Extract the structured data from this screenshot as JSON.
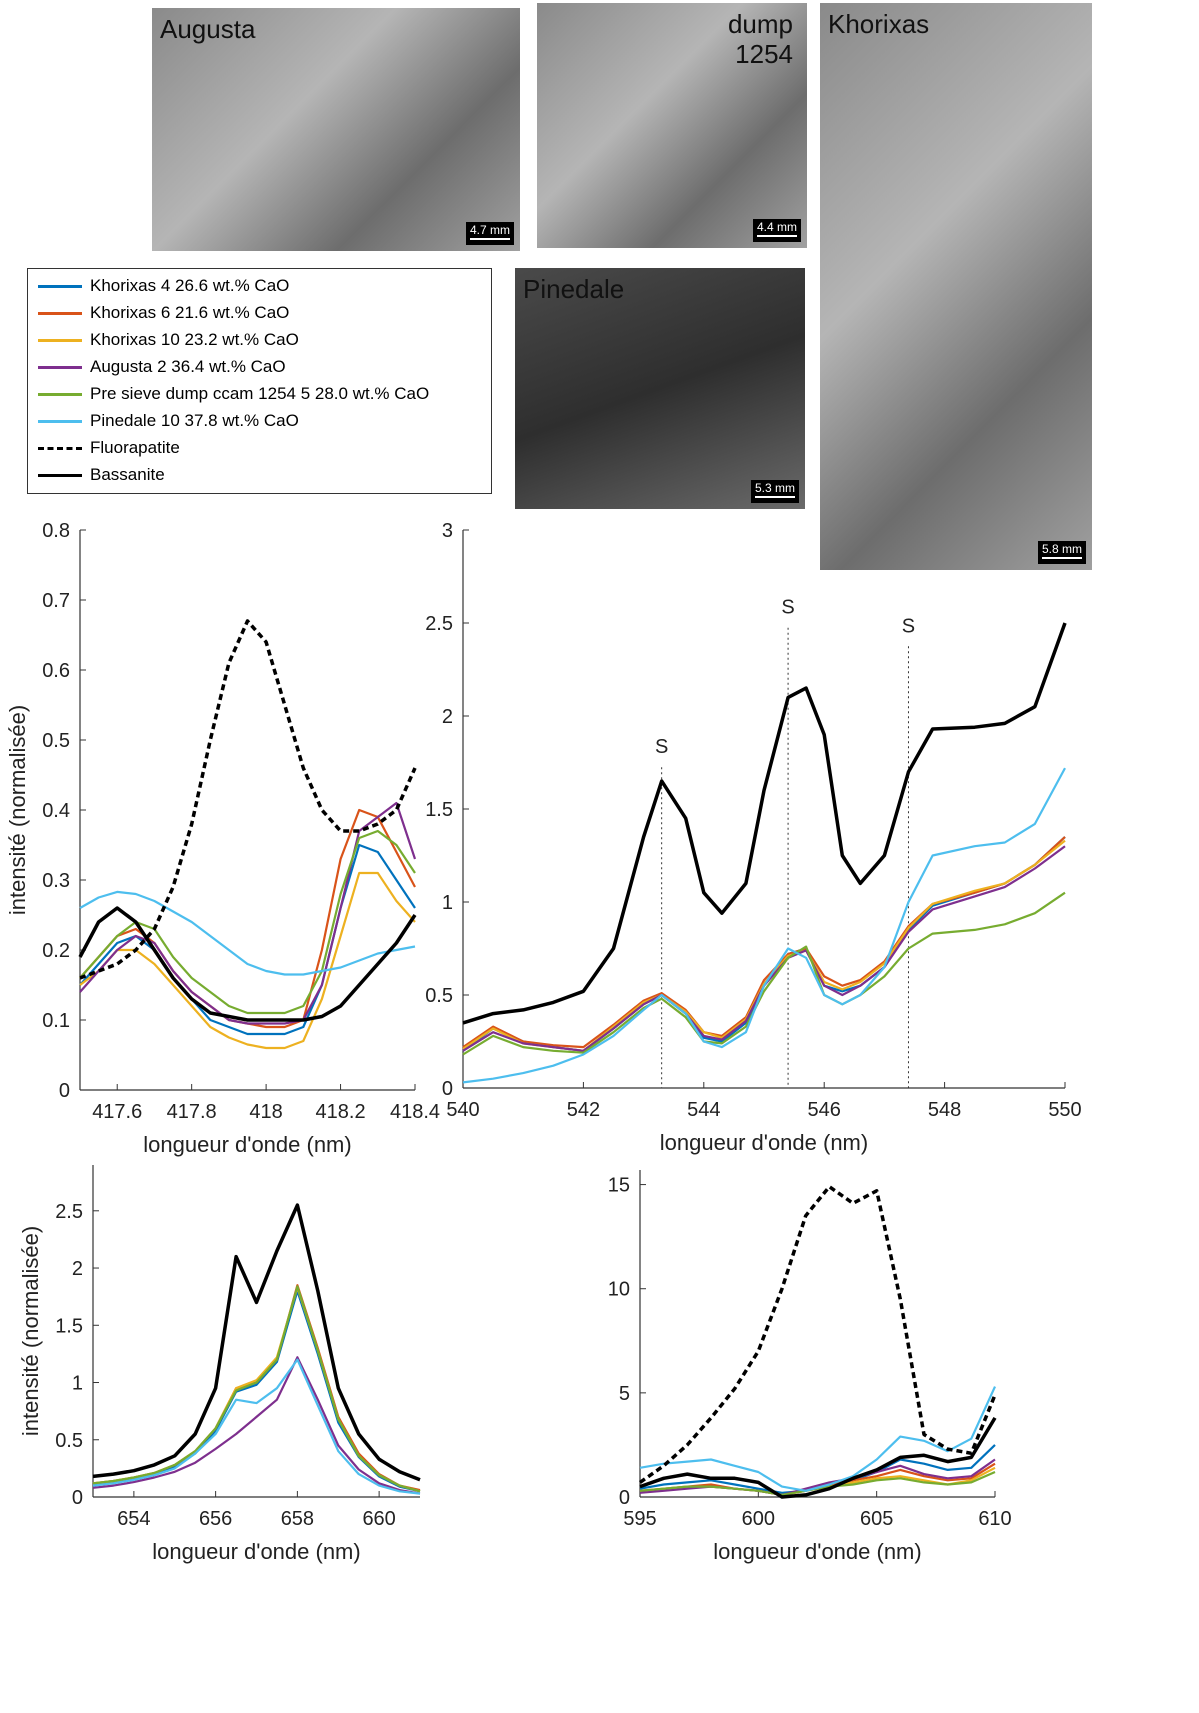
{
  "images": [
    {
      "label": "Augusta",
      "scale": "4.7 mm"
    },
    {
      "label": "dump 1254",
      "scale": "4.4 mm"
    },
    {
      "label": "Khorixas",
      "scale": "5.8 mm"
    },
    {
      "label": "Pinedale",
      "scale": "5.3 mm"
    }
  ],
  "legend": [
    {
      "name": "Khorixas 4 26.6 wt.% CaO",
      "color": "#0072bd",
      "dashed": false
    },
    {
      "name": "Khorixas 6 21.6 wt.% CaO",
      "color": "#d95319",
      "dashed": false
    },
    {
      "name": "Khorixas 10 23.2 wt.% CaO",
      "color": "#edb120",
      "dashed": false
    },
    {
      "name": "Augusta 2 36.4 wt.% CaO",
      "color": "#7e2f8e",
      "dashed": false
    },
    {
      "name": "Pre sieve dump ccam 1254 5 28.0 wt.% CaO",
      "color": "#77ac30",
      "dashed": false
    },
    {
      "name": "Pinedale 10 37.8 wt.% CaO",
      "color": "#4dbeee",
      "dashed": false
    },
    {
      "name": "Fluorapatite",
      "color": "#000000",
      "dashed": true
    },
    {
      "name": "Bassanite",
      "color": "#000000",
      "dashed": false
    }
  ],
  "chart_data": [
    {
      "type": "line",
      "x_label": "longueur d'onde (nm)",
      "y_label": "intensité (normalisée)",
      "xlim": [
        417.5,
        418.4
      ],
      "xticks": [
        417.6,
        417.8,
        418,
        418.2,
        418.4
      ],
      "ylim": [
        0,
        0.8
      ],
      "yticks": [
        0,
        0.1,
        0.2,
        0.3,
        0.4,
        0.5,
        0.6,
        0.7,
        0.8
      ],
      "x": [
        417.5,
        417.55,
        417.6,
        417.65,
        417.7,
        417.75,
        417.8,
        417.85,
        417.9,
        417.95,
        418,
        418.05,
        418.1,
        418.15,
        418.2,
        418.25,
        418.3,
        418.35,
        418.4
      ],
      "series": [
        {
          "values": [
            0.15,
            0.18,
            0.21,
            0.22,
            0.2,
            0.16,
            0.13,
            0.1,
            0.09,
            0.08,
            0.08,
            0.08,
            0.09,
            0.15,
            0.26,
            0.35,
            0.34,
            0.3,
            0.26
          ]
        },
        {
          "values": [
            0.16,
            0.19,
            0.22,
            0.23,
            0.21,
            0.17,
            0.14,
            0.12,
            0.1,
            0.095,
            0.09,
            0.09,
            0.1,
            0.2,
            0.33,
            0.4,
            0.39,
            0.34,
            0.29
          ]
        },
        {
          "values": [
            0.15,
            0.17,
            0.2,
            0.2,
            0.18,
            0.15,
            0.12,
            0.09,
            0.075,
            0.065,
            0.06,
            0.06,
            0.07,
            0.13,
            0.22,
            0.31,
            0.31,
            0.27,
            0.24
          ]
        },
        {
          "values": [
            0.14,
            0.17,
            0.2,
            0.22,
            0.21,
            0.17,
            0.14,
            0.12,
            0.1,
            0.095,
            0.095,
            0.095,
            0.1,
            0.15,
            0.26,
            0.37,
            0.39,
            0.41,
            0.33
          ]
        },
        {
          "values": [
            0.16,
            0.19,
            0.22,
            0.24,
            0.23,
            0.19,
            0.16,
            0.14,
            0.12,
            0.11,
            0.11,
            0.11,
            0.12,
            0.17,
            0.28,
            0.36,
            0.37,
            0.35,
            0.31
          ]
        },
        {
          "values": [
            0.26,
            0.275,
            0.283,
            0.28,
            0.27,
            0.255,
            0.24,
            0.22,
            0.2,
            0.18,
            0.17,
            0.165,
            0.165,
            0.17,
            0.175,
            0.185,
            0.195,
            0.2,
            0.205
          ]
        },
        {
          "values": [
            0.16,
            0.17,
            0.18,
            0.2,
            0.23,
            0.29,
            0.38,
            0.5,
            0.61,
            0.67,
            0.64,
            0.55,
            0.46,
            0.4,
            0.37,
            0.37,
            0.38,
            0.4,
            0.46
          ]
        },
        {
          "values": [
            0.19,
            0.24,
            0.26,
            0.24,
            0.2,
            0.16,
            0.13,
            0.11,
            0.105,
            0.1,
            0.1,
            0.1,
            0.1,
            0.105,
            0.12,
            0.15,
            0.18,
            0.21,
            0.25
          ]
        }
      ]
    },
    {
      "type": "line",
      "x_label": "longueur d'onde (nm)",
      "xlim": [
        540,
        550
      ],
      "xticks": [
        540,
        542,
        544,
        546,
        548,
        550
      ],
      "ylim": [
        0,
        3
      ],
      "yticks": [
        0,
        0.5,
        1,
        1.5,
        2,
        2.5,
        3
      ],
      "annotations": [
        {
          "text": "S",
          "x": 543.3,
          "y": 1.8
        },
        {
          "text": "S",
          "x": 545.4,
          "y": 2.55
        },
        {
          "text": "S",
          "x": 547.4,
          "y": 2.45
        }
      ],
      "x": [
        540,
        540.5,
        541,
        541.5,
        542,
        542.5,
        543,
        543.3,
        543.7,
        544,
        544.3,
        544.7,
        545,
        545.4,
        545.7,
        546,
        546.3,
        546.6,
        547,
        547.4,
        547.8,
        548.5,
        549,
        549.5,
        550
      ],
      "series": [
        {
          "values": [
            0.2,
            0.32,
            0.25,
            0.22,
            0.2,
            0.32,
            0.45,
            0.5,
            0.4,
            0.27,
            0.25,
            0.35,
            0.55,
            0.72,
            0.75,
            0.55,
            0.52,
            0.55,
            0.65,
            0.85,
            0.98,
            1.05,
            1.1,
            1.2,
            1.35
          ]
        },
        {
          "values": [
            0.22,
            0.33,
            0.25,
            0.23,
            0.22,
            0.34,
            0.47,
            0.51,
            0.42,
            0.3,
            0.28,
            0.38,
            0.58,
            0.72,
            0.75,
            0.6,
            0.55,
            0.58,
            0.68,
            0.87,
            0.99,
            1.05,
            1.1,
            1.2,
            1.35
          ]
        },
        {
          "values": [
            0.21,
            0.32,
            0.24,
            0.22,
            0.2,
            0.33,
            0.46,
            0.5,
            0.41,
            0.3,
            0.27,
            0.37,
            0.56,
            0.71,
            0.74,
            0.57,
            0.53,
            0.57,
            0.67,
            0.86,
            0.99,
            1.06,
            1.1,
            1.2,
            1.33
          ]
        },
        {
          "values": [
            0.2,
            0.3,
            0.24,
            0.22,
            0.2,
            0.32,
            0.45,
            0.5,
            0.4,
            0.28,
            0.26,
            0.36,
            0.55,
            0.7,
            0.74,
            0.55,
            0.5,
            0.55,
            0.65,
            0.84,
            0.96,
            1.03,
            1.08,
            1.18,
            1.3
          ]
        },
        {
          "values": [
            0.18,
            0.28,
            0.22,
            0.2,
            0.19,
            0.3,
            0.43,
            0.48,
            0.38,
            0.25,
            0.24,
            0.33,
            0.52,
            0.7,
            0.76,
            0.5,
            0.45,
            0.5,
            0.6,
            0.75,
            0.83,
            0.85,
            0.88,
            0.94,
            1.05
          ]
        },
        {
          "values": [
            0.03,
            0.05,
            0.08,
            0.12,
            0.18,
            0.28,
            0.42,
            0.5,
            0.4,
            0.25,
            0.22,
            0.3,
            0.55,
            0.75,
            0.7,
            0.5,
            0.45,
            0.5,
            0.65,
            1.0,
            1.25,
            1.3,
            1.32,
            1.42,
            1.72
          ]
        },
        {
          "values": [
            null,
            null,
            null,
            null,
            null,
            null,
            null,
            null,
            null,
            null,
            null,
            null,
            null,
            null,
            null,
            null,
            null,
            null,
            null,
            null,
            null,
            null,
            null,
            null,
            null
          ]
        },
        {
          "values": [
            0.35,
            0.4,
            0.42,
            0.46,
            0.52,
            0.75,
            1.35,
            1.65,
            1.45,
            1.05,
            0.94,
            1.1,
            1.6,
            2.1,
            2.15,
            1.9,
            1.25,
            1.1,
            1.25,
            1.7,
            1.93,
            1.94,
            1.96,
            2.05,
            2.5
          ]
        }
      ]
    },
    {
      "type": "line",
      "x_label": "longueur d'onde (nm)",
      "y_label": "intensité (normalisée)",
      "xlim": [
        653,
        661
      ],
      "xticks": [
        654,
        656,
        658,
        660
      ],
      "ylim": [
        0,
        2.9
      ],
      "yticks": [
        0,
        0.5,
        1,
        1.5,
        2,
        2.5
      ],
      "x": [
        653,
        653.5,
        654,
        654.5,
        655,
        655.5,
        656,
        656.5,
        657,
        657.5,
        658,
        658.5,
        659,
        659.5,
        660,
        660.5,
        661
      ],
      "series": [
        {
          "values": [
            0.11,
            0.13,
            0.16,
            0.2,
            0.26,
            0.38,
            0.58,
            0.92,
            0.98,
            1.18,
            1.8,
            1.25,
            0.65,
            0.35,
            0.18,
            0.09,
            0.05
          ]
        },
        {
          "values": [
            0.12,
            0.14,
            0.17,
            0.21,
            0.28,
            0.4,
            0.6,
            0.95,
            1.0,
            1.2,
            1.85,
            1.3,
            0.7,
            0.38,
            0.2,
            0.1,
            0.06
          ]
        },
        {
          "values": [
            0.12,
            0.14,
            0.17,
            0.21,
            0.28,
            0.4,
            0.6,
            0.95,
            1.02,
            1.22,
            1.83,
            1.28,
            0.68,
            0.36,
            0.19,
            0.1,
            0.05
          ]
        },
        {
          "values": [
            0.08,
            0.1,
            0.13,
            0.17,
            0.22,
            0.3,
            0.42,
            0.55,
            0.7,
            0.85,
            1.22,
            0.85,
            0.45,
            0.24,
            0.12,
            0.06,
            0.03
          ]
        },
        {
          "values": [
            0.12,
            0.14,
            0.17,
            0.21,
            0.28,
            0.4,
            0.6,
            0.93,
            1.0,
            1.2,
            1.84,
            1.28,
            0.68,
            0.36,
            0.19,
            0.1,
            0.05
          ]
        },
        {
          "values": [
            0.1,
            0.12,
            0.15,
            0.19,
            0.25,
            0.38,
            0.55,
            0.85,
            0.82,
            0.95,
            1.2,
            0.8,
            0.4,
            0.2,
            0.1,
            0.05,
            0.03
          ]
        },
        {
          "values": [
            null,
            null,
            null,
            null,
            null,
            null,
            null,
            null,
            null,
            null,
            null,
            null,
            null,
            null,
            null,
            null,
            null
          ]
        },
        {
          "values": [
            0.18,
            0.2,
            0.23,
            0.28,
            0.36,
            0.55,
            0.95,
            2.1,
            1.7,
            2.15,
            2.55,
            1.8,
            0.95,
            0.55,
            0.33,
            0.22,
            0.15
          ]
        }
      ]
    },
    {
      "type": "line",
      "x_label": "longueur d'onde (nm)",
      "xlim": [
        595,
        610
      ],
      "xticks": [
        595,
        600,
        605,
        610
      ],
      "ylim": [
        0,
        15.7
      ],
      "yticks": [
        0,
        5,
        10,
        15
      ],
      "x": [
        595,
        596,
        597,
        598,
        599,
        600,
        601,
        602,
        603,
        604,
        605,
        606,
        607,
        608,
        609,
        610
      ],
      "series": [
        {
          "values": [
            0.4,
            0.6,
            0.7,
            0.8,
            0.6,
            0.4,
            0.2,
            0.3,
            0.6,
            0.8,
            1.2,
            1.8,
            1.6,
            1.3,
            1.4,
            2.5
          ]
        },
        {
          "values": [
            0.3,
            0.4,
            0.5,
            0.6,
            0.4,
            0.3,
            0.1,
            0.3,
            0.6,
            0.8,
            1.0,
            1.3,
            1.0,
            0.8,
            0.9,
            1.6
          ]
        },
        {
          "values": [
            0.3,
            0.4,
            0.5,
            0.5,
            0.4,
            0.3,
            0.1,
            0.3,
            0.5,
            0.7,
            0.9,
            1.0,
            0.8,
            0.6,
            0.8,
            1.4
          ]
        },
        {
          "values": [
            0.2,
            0.3,
            0.4,
            0.5,
            0.4,
            0.3,
            0.1,
            0.4,
            0.7,
            0.9,
            1.2,
            1.5,
            1.1,
            0.9,
            1.0,
            1.8
          ]
        },
        {
          "values": [
            0.3,
            0.4,
            0.5,
            0.5,
            0.4,
            0.3,
            0.1,
            0.3,
            0.5,
            0.6,
            0.8,
            0.9,
            0.7,
            0.6,
            0.7,
            1.2
          ]
        },
        {
          "values": [
            1.4,
            1.6,
            1.7,
            1.8,
            1.5,
            1.2,
            0.5,
            0.3,
            0.6,
            1.0,
            1.8,
            2.9,
            2.7,
            2.2,
            2.8,
            5.3
          ]
        },
        {
          "values": [
            0.7,
            1.5,
            2.5,
            3.8,
            5.2,
            7,
            10,
            13.5,
            14.9,
            14.1,
            14.7,
            9.5,
            3,
            2.3,
            2.1,
            4.9
          ]
        },
        {
          "values": [
            0.5,
            0.9,
            1.1,
            0.9,
            0.9,
            0.7,
            0,
            0.1,
            0.4,
            0.9,
            1.3,
            1.9,
            2.0,
            1.7,
            1.9,
            3.8
          ]
        }
      ]
    }
  ]
}
